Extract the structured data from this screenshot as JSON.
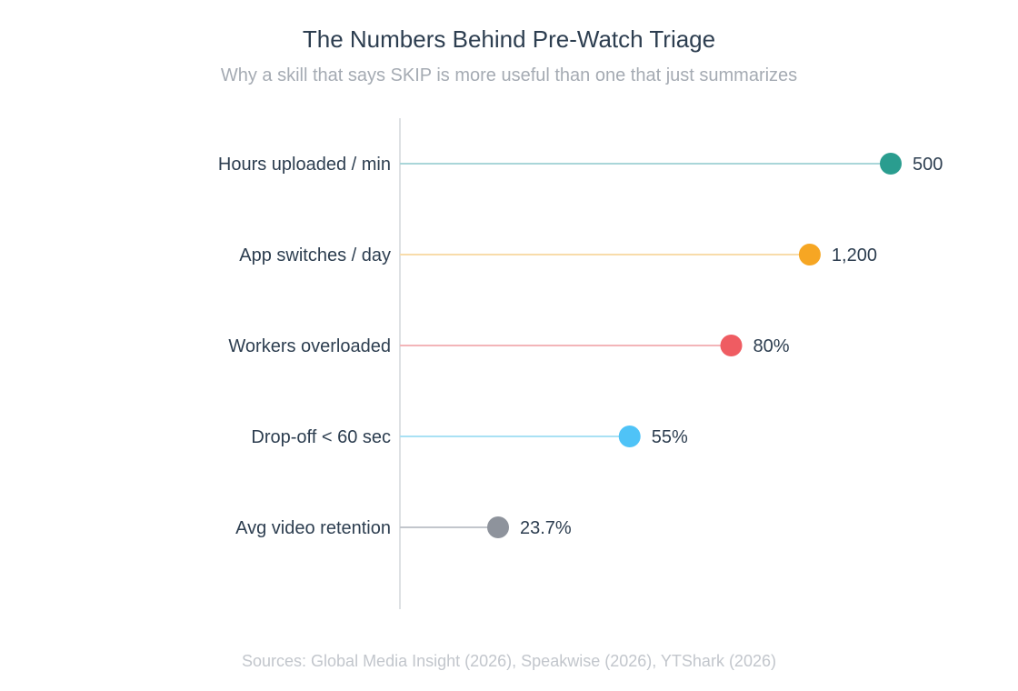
{
  "title": "The Numbers Behind Pre-Watch Triage",
  "subtitle": "Why a skill that says SKIP is more useful than one that just summarizes",
  "sources": "Sources: Global Media Insight (2026), Speakwise (2026), YTShark (2026)",
  "chart_data": {
    "type": "lollipop",
    "orientation": "horizontal",
    "grid": false,
    "categories": [
      "Hours uploaded / min",
      "App switches / day",
      "Workers overloaded",
      "Drop-off < 60 sec",
      "Avg video retention"
    ],
    "values": [
      500,
      1200,
      80,
      55,
      23.7
    ],
    "value_labels": [
      "500",
      "1,200",
      "80%",
      "55%",
      "23.7%"
    ],
    "fill_fraction": [
      1.0,
      0.835,
      0.675,
      0.468,
      0.2
    ],
    "colors": [
      "#2a9d8f",
      "#f6a623",
      "#ef5c62",
      "#4fc3f7",
      "#8e939c"
    ],
    "line_colors": [
      "#a9d6d9",
      "#f8dcaa",
      "#f3b5b8",
      "#a9e1f4",
      "#c2c6cc"
    ]
  }
}
